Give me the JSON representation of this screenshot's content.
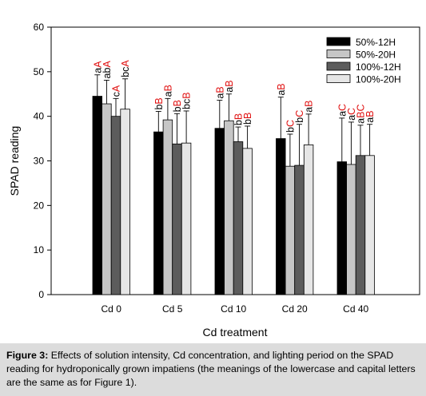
{
  "chart_data": {
    "type": "bar",
    "xlabel": "Cd treatment",
    "ylabel": "SPAD reading",
    "ylim": [
      0,
      60
    ],
    "yticks": [
      0,
      10,
      20,
      30,
      40,
      50,
      60
    ],
    "categories": [
      "Cd 0",
      "Cd 5",
      "Cd 10",
      "Cd 20",
      "Cd 40"
    ],
    "legend_position": "top-right",
    "series": [
      {
        "name": "50%-12H",
        "color": "#000000",
        "values": [
          44.5,
          36.5,
          37.3,
          35.0,
          29.8
        ],
        "errors": [
          4.8,
          4.6,
          6.3,
          9.3,
          9.8
        ],
        "labels": [
          "aA",
          "bB",
          "aB",
          "aB",
          "aC"
        ]
      },
      {
        "name": "50%-20H",
        "color": "#c6c6c6",
        "values": [
          42.8,
          39.2,
          39.0,
          28.8,
          29.2
        ],
        "errors": [
          5.3,
          4.8,
          6.0,
          7.2,
          9.5
        ],
        "labels": [
          "abA",
          "aB",
          "aB",
          "bC",
          "aC"
        ]
      },
      {
        "name": "100%-12H",
        "color": "#5c5c5c",
        "values": [
          40.0,
          33.8,
          34.3,
          29.0,
          31.2
        ],
        "errors": [
          4.0,
          6.8,
          3.3,
          9.2,
          6.8
        ],
        "labels": [
          "cA",
          "bB",
          "bB",
          "bC",
          "aBC"
        ]
      },
      {
        "name": "100%-20H",
        "color": "#e6e6e6",
        "values": [
          41.6,
          34.0,
          32.8,
          33.6,
          31.2
        ],
        "errors": [
          6.8,
          7.2,
          5.0,
          6.9,
          7.0
        ],
        "labels": [
          "bcA",
          "bcB",
          "bB",
          "aB",
          "aB"
        ]
      }
    ]
  },
  "caption": {
    "label": "Figure 3:",
    "text": "Effects of solution intensity, Cd concentration, and lighting period on the SPAD reading for hydroponically grown impatiens (the meanings of the lowercase and capital letters are the same as for Figure 1)."
  },
  "letter_colors": {
    "lowercase": "#000000",
    "uppercase": "#e01010"
  }
}
